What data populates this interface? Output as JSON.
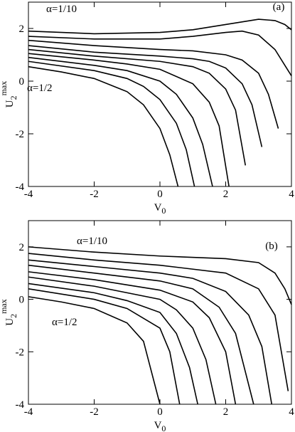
{
  "chart_data": [
    {
      "type": "line",
      "panel_label": "(a)",
      "xlabel": {
        "main": "V",
        "sub": "0"
      },
      "ylabel": {
        "main": "U",
        "sub": "2",
        "sup": "max"
      },
      "annotations": [
        "α=1/10",
        "α=1/2"
      ],
      "xlim": [
        -4,
        4
      ],
      "ylim": [
        -4,
        3
      ],
      "xticks": [
        -4,
        -2,
        0,
        2,
        4
      ],
      "yticks": [
        -4,
        -2,
        0,
        2
      ],
      "series": [
        {
          "color": "#000000",
          "x": [
            -4,
            -2,
            0,
            1,
            2,
            3,
            3.5,
            3.8,
            4
          ],
          "values": [
            1.9,
            1.8,
            1.85,
            1.95,
            2.15,
            2.35,
            2.3,
            2.15,
            1.95
          ]
        },
        {
          "color": "#000000",
          "x": [
            -4,
            -2,
            0,
            1,
            2,
            2.5,
            3,
            3.5,
            3.8,
            4
          ],
          "values": [
            1.7,
            1.6,
            1.6,
            1.7,
            1.85,
            1.9,
            1.75,
            1.2,
            0.6,
            0.2
          ]
        },
        {
          "color": "#000000",
          "x": [
            -4,
            -2,
            0,
            1,
            2,
            2.5,
            3,
            3.3,
            3.6
          ],
          "values": [
            1.55,
            1.35,
            1.2,
            1.15,
            1.0,
            0.8,
            0.3,
            -0.5,
            -1.8
          ]
        },
        {
          "color": "#000000",
          "x": [
            -4,
            -2,
            0,
            1,
            1.5,
            2,
            2.5,
            2.8,
            3.1
          ],
          "values": [
            1.35,
            1.1,
            0.95,
            0.85,
            0.75,
            0.5,
            -0.1,
            -0.9,
            -2.5
          ]
        },
        {
          "color": "#000000",
          "x": [
            -4,
            -2,
            0,
            1,
            1.5,
            2,
            2.3,
            2.6
          ],
          "values": [
            1.2,
            0.95,
            0.75,
            0.55,
            0.3,
            -0.3,
            -1.1,
            -3.2
          ]
        },
        {
          "color": "#000000",
          "x": [
            -4,
            -2,
            -1,
            0,
            1,
            1.5,
            1.8,
            2.1
          ],
          "values": [
            1.05,
            0.8,
            0.65,
            0.45,
            -0.1,
            -0.8,
            -1.7,
            -4
          ]
        },
        {
          "color": "#000000",
          "x": [
            -4,
            -2,
            -1,
            0,
            0.5,
            1,
            1.3,
            1.6
          ],
          "values": [
            0.9,
            0.6,
            0.4,
            0.0,
            -0.5,
            -1.4,
            -2.4,
            -4
          ]
        },
        {
          "color": "#000000",
          "x": [
            -4,
            -2,
            -1,
            -0.5,
            0,
            0.5,
            0.8,
            1.05
          ],
          "values": [
            0.75,
            0.4,
            0.1,
            -0.2,
            -0.7,
            -1.6,
            -2.6,
            -4
          ]
        },
        {
          "color": "#000000",
          "x": [
            -4,
            -3,
            -2,
            -1,
            -0.5,
            0,
            0.3,
            0.55
          ],
          "values": [
            0.55,
            0.35,
            0.1,
            -0.4,
            -0.9,
            -1.8,
            -2.8,
            -4
          ]
        }
      ]
    },
    {
      "type": "line",
      "panel_label": "(b)",
      "xlabel": {
        "main": "V",
        "sub": "0"
      },
      "ylabel": {
        "main": "U",
        "sub": "2",
        "sup": "max"
      },
      "annotations": [
        "α=1/10",
        "α=1/2"
      ],
      "xlim": [
        -4,
        4
      ],
      "ylim": [
        -4,
        3
      ],
      "xticks": [
        -4,
        -2,
        0,
        2,
        4
      ],
      "yticks": [
        -4,
        -2,
        0,
        2
      ],
      "series": [
        {
          "color": "#000000",
          "x": [
            -4,
            -2,
            0,
            2,
            3,
            3.5,
            3.8,
            4
          ],
          "values": [
            2.0,
            1.8,
            1.65,
            1.55,
            1.4,
            1.0,
            0.4,
            -0.2
          ]
        },
        {
          "color": "#000000",
          "x": [
            -4,
            -2,
            0,
            2,
            3,
            3.5,
            3.9
          ],
          "values": [
            1.75,
            1.5,
            1.3,
            1.0,
            0.4,
            -0.6,
            -3.5
          ]
        },
        {
          "color": "#000000",
          "x": [
            -4,
            -2,
            0,
            1,
            2,
            2.7,
            3.1,
            3.4
          ],
          "values": [
            1.5,
            1.25,
            1.0,
            0.8,
            0.3,
            -0.6,
            -1.8,
            -4
          ]
        },
        {
          "color": "#000000",
          "x": [
            -4,
            -2,
            0,
            1,
            1.8,
            2.3,
            2.85
          ],
          "values": [
            1.3,
            1.0,
            0.7,
            0.4,
            -0.3,
            -1.3,
            -4
          ]
        },
        {
          "color": "#000000",
          "x": [
            -4,
            -2,
            0,
            1,
            1.5,
            2,
            2.3
          ],
          "values": [
            1.05,
            0.75,
            0.35,
            -0.1,
            -0.7,
            -2.0,
            -4
          ]
        },
        {
          "color": "#000000",
          "x": [
            -4,
            -2,
            0,
            0.5,
            1,
            1.4,
            1.7
          ],
          "values": [
            0.85,
            0.5,
            0.0,
            -0.4,
            -1.1,
            -2.3,
            -4
          ]
        },
        {
          "color": "#000000",
          "x": [
            -4,
            -2,
            -1,
            0,
            0.5,
            0.9,
            1.15
          ],
          "values": [
            0.6,
            0.25,
            -0.05,
            -0.5,
            -1.3,
            -2.6,
            -4
          ]
        },
        {
          "color": "#000000",
          "x": [
            -4,
            -2,
            -1,
            0,
            0.3,
            0.6
          ],
          "values": [
            0.4,
            0.0,
            -0.35,
            -1.1,
            -2.0,
            -4
          ]
        },
        {
          "color": "#000000",
          "x": [
            -4,
            -3,
            -2,
            -1,
            -0.5,
            0
          ],
          "values": [
            0.1,
            -0.1,
            -0.35,
            -0.9,
            -1.6,
            -4
          ]
        }
      ]
    }
  ]
}
